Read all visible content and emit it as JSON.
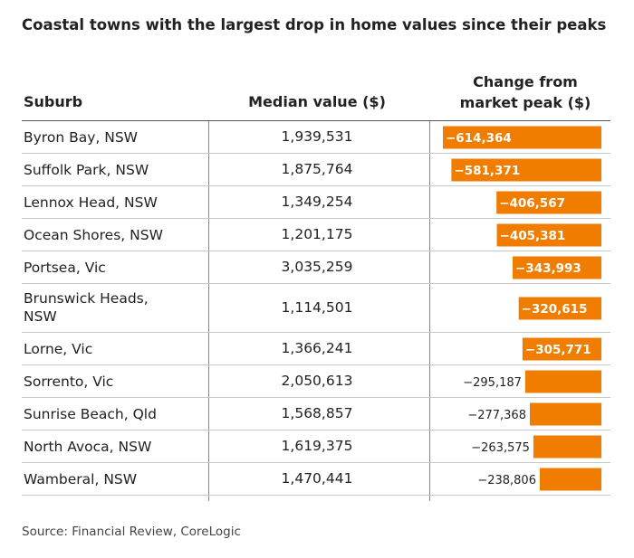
{
  "title": "Coastal towns with the largest drop in home values since their peaks",
  "source": "Source: Financial Review, CoreLogic",
  "columns": {
    "suburb": "Suburb",
    "median": "Median value ($)",
    "change_line1": "Change from",
    "change_line2": "market peak ($)"
  },
  "colors": {
    "bar": "#f07d00",
    "label_inside": "#ffffff",
    "label_outside": "#222222"
  },
  "chart_data": {
    "type": "table",
    "columns": [
      "Suburb",
      "Median value ($)",
      "Change from market peak ($)"
    ],
    "rows": [
      {
        "suburb": "Byron Bay, NSW",
        "median": "1,939,531",
        "change": -614364,
        "change_label": "−614,364"
      },
      {
        "suburb": "Suffolk Park, NSW",
        "median": "1,875,764",
        "change": -581371,
        "change_label": "−581,371"
      },
      {
        "suburb": "Lennox Head, NSW",
        "median": "1,349,254",
        "change": -406567,
        "change_label": "−406,567"
      },
      {
        "suburb": "Ocean Shores, NSW",
        "median": "1,201,175",
        "change": -405381,
        "change_label": "−405,381"
      },
      {
        "suburb": "Portsea, Vic",
        "median": "3,035,259",
        "change": -343993,
        "change_label": "−343,993"
      },
      {
        "suburb": "Brunswick Heads, NSW",
        "median": "1,114,501",
        "change": -320615,
        "change_label": "−320,615"
      },
      {
        "suburb": "Lorne, Vic",
        "median": "1,366,241",
        "change": -305771,
        "change_label": "−305,771"
      },
      {
        "suburb": "Sorrento, Vic",
        "median": "2,050,613",
        "change": -295187,
        "change_label": "−295,187"
      },
      {
        "suburb": "Sunrise Beach, Qld",
        "median": "1,568,857",
        "change": -277368,
        "change_label": "−277,368"
      },
      {
        "suburb": "North Avoca, NSW",
        "median": "1,619,375",
        "change": -263575,
        "change_label": "−263,575"
      },
      {
        "suburb": "Wamberal, NSW",
        "median": "1,470,441",
        "change": -238806,
        "change_label": "−238,806"
      }
    ]
  }
}
